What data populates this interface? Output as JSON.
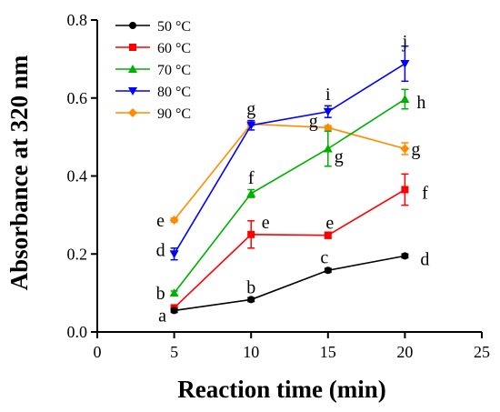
{
  "chart_data": {
    "type": "line",
    "xlabel": "Reaction time (min)",
    "ylabel": "Absorbance at 320 nm",
    "xlim": [
      0,
      25
    ],
    "ylim": [
      0,
      0.8
    ],
    "xticks": [
      0,
      5,
      10,
      15,
      20,
      25
    ],
    "yticks": [
      0.0,
      0.2,
      0.4,
      0.6,
      0.8
    ],
    "xtick_labels": [
      "0",
      "5",
      "10",
      "15",
      "20",
      "25"
    ],
    "ytick_labels": [
      "0.0",
      "0.2",
      "0.4",
      "0.6",
      "0.8"
    ],
    "grid": false,
    "legend_position": "top-left",
    "x": [
      5,
      10,
      15,
      20
    ],
    "series": [
      {
        "name": "50 °C",
        "color": "#000000",
        "marker": "circle",
        "values": [
          0.055,
          0.083,
          0.158,
          0.195
        ],
        "errors": [
          0.005,
          0.005,
          0.005,
          0.005
        ],
        "letters": [
          "a",
          "b",
          "c",
          "d"
        ]
      },
      {
        "name": "60 °C",
        "color": "#ff0000",
        "marker": "square",
        "values": [
          0.062,
          0.25,
          0.248,
          0.365
        ],
        "errors": [
          0.005,
          0.035,
          0.008,
          0.04
        ],
        "letters": [
          "",
          "e",
          "e",
          "f"
        ]
      },
      {
        "name": "70 °C",
        "color": "#00b000",
        "marker": "triangle-up",
        "values": [
          0.1,
          0.355,
          0.47,
          0.597
        ],
        "errors": [
          0.005,
          0.01,
          0.045,
          0.025
        ],
        "letters": [
          "b",
          "f",
          "g",
          "h"
        ]
      },
      {
        "name": "80 °C",
        "color": "#0000ff",
        "marker": "triangle-down",
        "values": [
          0.2,
          0.53,
          0.565,
          0.688
        ],
        "errors": [
          0.015,
          0.012,
          0.015,
          0.045
        ],
        "letters": [
          "d",
          "g",
          "i",
          "j"
        ]
      },
      {
        "name": "90 °C",
        "color": "#ff8c00",
        "marker": "diamond",
        "values": [
          0.287,
          0.533,
          0.524,
          0.47
        ],
        "errors": [
          0.005,
          0.005,
          0.005,
          0.015
        ],
        "letters": [
          "e",
          "",
          "g",
          "g"
        ]
      }
    ]
  }
}
